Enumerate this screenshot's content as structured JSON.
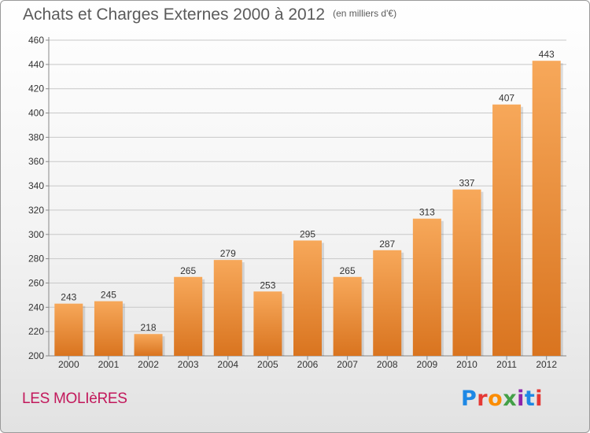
{
  "header": {
    "title": "Achats et Charges Externes 2000 à 2012",
    "subtitle": "(en milliers d'€)"
  },
  "footer": {
    "commune": "LES MOLIèRES",
    "logo": "Proxiti",
    "logo_colors": [
      "#1e88e5",
      "#e53935",
      "#fb8c00",
      "#43a047",
      "#8e24aa",
      "#1e88e5",
      "#e53935"
    ]
  },
  "colors": {
    "bar_light": "#f7a85a",
    "bar_dark": "#d9741f",
    "grid": "#c8c8c8",
    "axis": "#888888"
  },
  "chart_data": {
    "type": "bar",
    "title": "Achats et Charges Externes 2000 à 2012",
    "subtitle": "(en milliers d'€)",
    "categories": [
      "2000",
      "2001",
      "2002",
      "2003",
      "2004",
      "2005",
      "2006",
      "2007",
      "2008",
      "2009",
      "2010",
      "2011",
      "2012"
    ],
    "values": [
      243,
      245,
      218,
      265,
      279,
      253,
      295,
      265,
      287,
      313,
      337,
      407,
      443
    ],
    "ylim": [
      200,
      460
    ],
    "yticks": [
      200,
      220,
      240,
      260,
      280,
      300,
      320,
      340,
      360,
      380,
      400,
      420,
      440,
      460
    ],
    "grid": true,
    "data_labels": true
  }
}
